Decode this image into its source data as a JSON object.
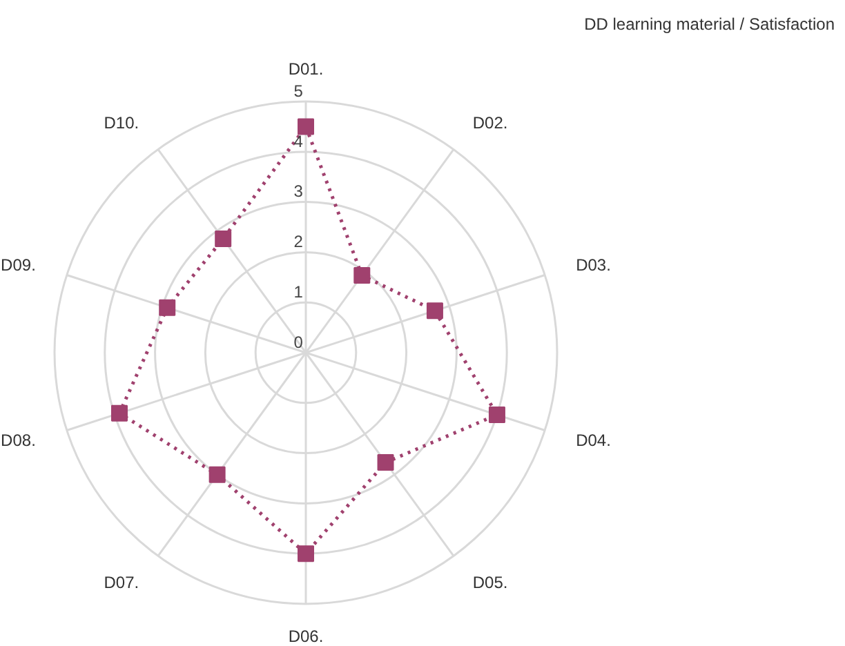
{
  "chart_data": {
    "type": "radar",
    "title": "DD learning material / Satisfaction",
    "categories": [
      "D01.",
      "D02.",
      "D03.",
      "D04.",
      "D05.",
      "D06.",
      "D07.",
      "D08.",
      "D09.",
      "D10."
    ],
    "series": [
      {
        "color": "#a0416e",
        "values": [
          4.5,
          1.9,
          2.7,
          4.0,
          2.7,
          4.0,
          3.0,
          3.9,
          2.9,
          2.8
        ]
      }
    ],
    "ylim": [
      0,
      5
    ],
    "yticks": [
      0,
      1,
      2,
      3,
      4,
      5
    ],
    "grid": true,
    "marker": "square",
    "line_style": "dotted"
  }
}
